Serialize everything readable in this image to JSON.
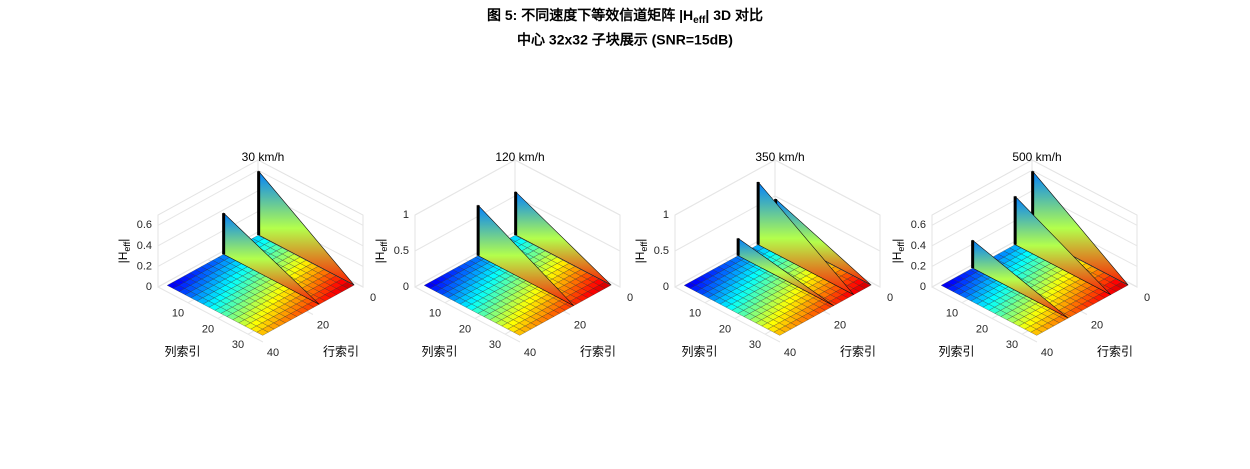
{
  "title_parts": [
    "图 5: 不同速度下等效信道矩阵 |H",
    "eff",
    "| 3D 对比"
  ],
  "subtitle": "中心 32x32 子块展示 (SNR=15dB)",
  "chart_data": [
    {
      "type": "surface3d",
      "title": "30 km/h",
      "xlabel": "列索引",
      "ylabel": "行索引",
      "zlabel_parts": [
        "|H",
        "eff",
        "|"
      ],
      "xlim": [
        0,
        35
      ],
      "ylim": [
        0,
        40
      ],
      "zlim": [
        0,
        0.7
      ],
      "xticks": [
        10,
        20,
        30
      ],
      "yticks": [
        0,
        20,
        40
      ],
      "zticks": [
        0,
        0.2,
        0.4,
        0.6
      ],
      "ridge_rows": [
        1,
        15
      ],
      "ridge_peaks": [
        0.62,
        0.4
      ]
    },
    {
      "type": "surface3d",
      "title": "120 km/h",
      "xlabel": "列索引",
      "ylabel": "行索引",
      "zlabel_parts": [
        "|H",
        "eff",
        "|"
      ],
      "xlim": [
        0,
        35
      ],
      "ylim": [
        0,
        40
      ],
      "zlim": [
        0,
        1
      ],
      "xticks": [
        10,
        20,
        30
      ],
      "yticks": [
        0,
        20,
        40
      ],
      "zticks": [
        0,
        0.5,
        1
      ],
      "ridge_rows": [
        1,
        16
      ],
      "ridge_peaks": [
        0.6,
        0.7
      ]
    },
    {
      "type": "surface3d",
      "title": "350 km/h",
      "xlabel": "列索引",
      "ylabel": "行索引",
      "zlabel_parts": [
        "|H",
        "eff",
        "|"
      ],
      "xlim": [
        0,
        35
      ],
      "ylim": [
        0,
        40
      ],
      "zlim": [
        0,
        1
      ],
      "xticks": [
        10,
        20,
        30
      ],
      "yticks": [
        0,
        20,
        40
      ],
      "zticks": [
        0,
        0.5,
        1
      ],
      "ridge_rows": [
        1,
        8,
        16
      ],
      "ridge_peaks": [
        0.5,
        0.87,
        0.24
      ]
    },
    {
      "type": "surface3d",
      "title": "500 km/h",
      "xlabel": "列索引",
      "ylabel": "行索引",
      "zlabel_parts": [
        "|H",
        "eff",
        "|"
      ],
      "xlim": [
        0,
        35
      ],
      "ylim": [
        0,
        40
      ],
      "zlim": [
        0,
        0.7
      ],
      "xticks": [
        10,
        20,
        30
      ],
      "yticks": [
        0,
        20,
        40
      ],
      "zticks": [
        0,
        0.2,
        0.4,
        0.6
      ],
      "ridge_rows": [
        1,
        8,
        25
      ],
      "ridge_peaks": [
        0.62,
        0.47,
        0.27
      ]
    }
  ]
}
